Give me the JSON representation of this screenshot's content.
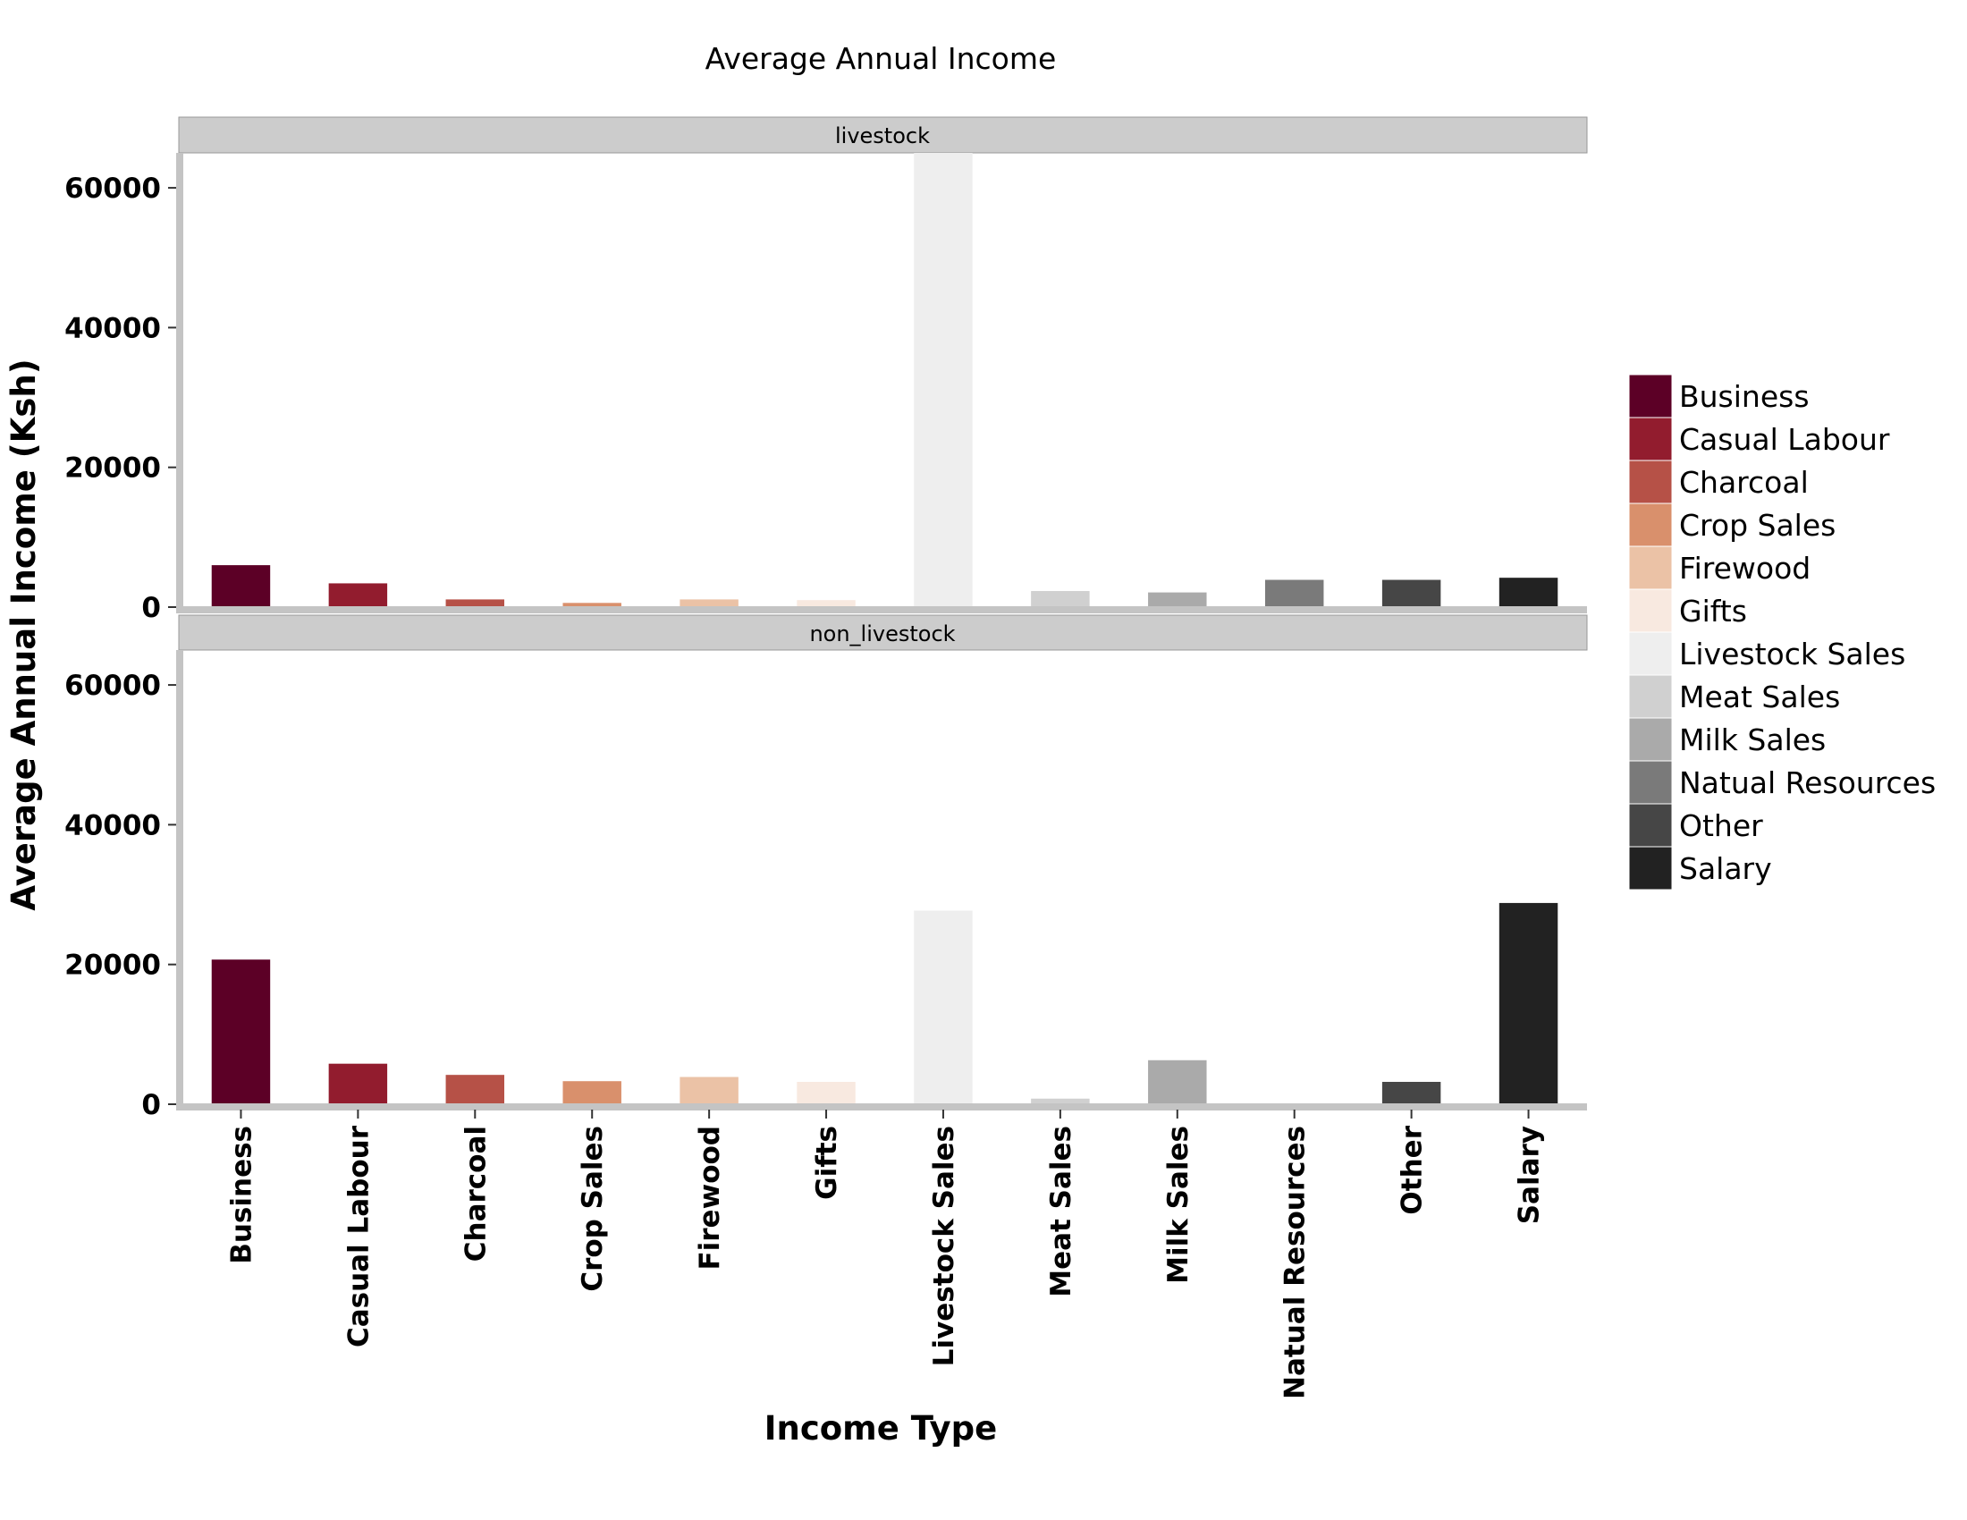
{
  "chart_data": {
    "type": "bar",
    "title": "Average Annual Income",
    "xlabel": "Income Type",
    "ylabel": "Average Annual Income (Ksh)",
    "ylim": [
      0,
      65000
    ],
    "yticks": [
      0,
      20000,
      40000,
      60000
    ],
    "ytick_labels": [
      "0",
      "20000",
      "40000",
      "60000"
    ],
    "grid": false,
    "legend_position": "right",
    "categories": [
      "Business",
      "Casual Labour",
      "Charcoal",
      "Crop Sales",
      "Firewood",
      "Gifts",
      "Livestock Sales",
      "Meat Sales",
      "Milk Sales",
      "Natual Resources",
      "Other",
      "Salary"
    ],
    "legend_labels": [
      "Business",
      "Casual Labour",
      "Charcoal",
      "Crop Sales",
      "Firewood",
      "Gifts",
      "Livestock Sales",
      "Meat Sales",
      "Milk Sales",
      "Natual Resources",
      "Other",
      "Salary"
    ],
    "colors": [
      "#5c0026",
      "#921c2e",
      "#b65147",
      "#d9906c",
      "#ebc2a6",
      "#f8e9e0",
      "#eeeeee",
      "#d0d0d0",
      "#aaaaaa",
      "#7a7a7a",
      "#464646",
      "#222222"
    ],
    "panels": [
      {
        "label": "livestock",
        "values": [
          6000,
          3400,
          1100,
          600,
          1100,
          1000,
          65000,
          2300,
          2100,
          3900,
          3900,
          4200
        ]
      },
      {
        "label": "non_livestock",
        "values": [
          20700,
          5800,
          4200,
          3300,
          3900,
          3200,
          27700,
          800,
          6300,
          0,
          3200,
          28800
        ]
      }
    ]
  }
}
